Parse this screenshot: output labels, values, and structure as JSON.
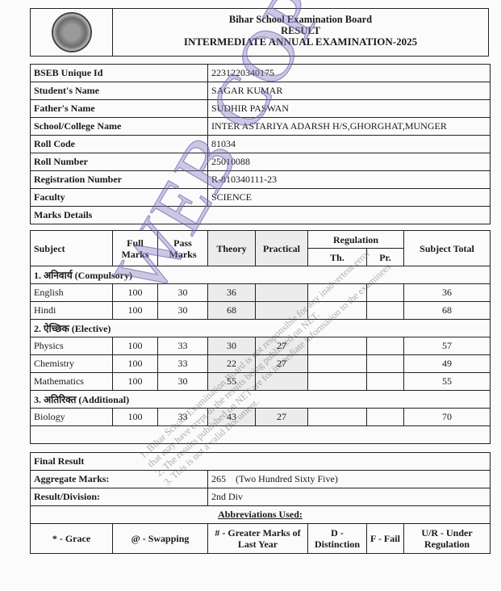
{
  "header": {
    "board": "Bihar School Examination Board",
    "subtitle": "RESULT",
    "exam": "INTERMEDIATE ANNUAL EXAMINATION-2025",
    "logo": "bseb-seal"
  },
  "info": [
    {
      "label": "BSEB Unique Id",
      "value": "2231220340175"
    },
    {
      "label": "Student's Name",
      "value": "SAGAR KUMAR"
    },
    {
      "label": "Father's Name",
      "value": "SUDHIR PASWAN"
    },
    {
      "label": "School/College Name",
      "value": "INTER ASTARIYA ADARSH H/S,GHORGHAT,MUNGER"
    },
    {
      "label": "Roll Code",
      "value": "81034"
    },
    {
      "label": "Roll Number",
      "value": "25010088"
    },
    {
      "label": "Registration Number",
      "value": "R-810340111-23"
    },
    {
      "label": "Faculty",
      "value": "SCIENCE"
    }
  ],
  "marks_details_label": "Marks Details",
  "columns": {
    "subject": "Subject",
    "full": "Full Marks",
    "pass": "Pass Marks",
    "theory": "Theory",
    "practical": "Practical",
    "regulation": "Regulation",
    "reg_th": "Th.",
    "reg_pr": "Pr.",
    "total": "Subject Total"
  },
  "sections": [
    {
      "title": "1. अनिवार्य (Compulsory)",
      "rows": [
        {
          "subject": "English",
          "full": "100",
          "pass": "30",
          "theory": "36",
          "practical": "",
          "th": "",
          "pr": "",
          "total": "36"
        },
        {
          "subject": "Hindi",
          "full": "100",
          "pass": "30",
          "theory": "68",
          "practical": "",
          "th": "",
          "pr": "",
          "total": "68"
        }
      ]
    },
    {
      "title": "2. ऐच्छिक (Elective)",
      "rows": [
        {
          "subject": "Physics",
          "full": "100",
          "pass": "33",
          "theory": "30",
          "practical": "27",
          "th": "",
          "pr": "",
          "total": "57"
        },
        {
          "subject": "Chemistry",
          "full": "100",
          "pass": "33",
          "theory": "22",
          "practical": "27",
          "th": "",
          "pr": "",
          "total": "49"
        },
        {
          "subject": "Mathematics",
          "full": "100",
          "pass": "30",
          "theory": "55",
          "practical": "",
          "th": "",
          "pr": "",
          "total": "55"
        }
      ]
    },
    {
      "title": "3. अतिरिक्त (Additional)",
      "rows": [
        {
          "subject": "Biology",
          "full": "100",
          "pass": "33",
          "theory": "43",
          "practical": "27",
          "th": "",
          "pr": "",
          "total": "70"
        }
      ]
    }
  ],
  "final": {
    "title": "Final Result",
    "aggregate_label": "Aggregate Marks:",
    "aggregate_value": "265    (Two Hundred Sixty Five)",
    "division_label": "Result/Division:",
    "division_value": "2nd Div"
  },
  "abbrev": {
    "title": "Abbreviations Used:",
    "items": [
      "* - Grace",
      "@ - Swapping",
      "# - Greater Marks of Last Year",
      "D - Distinction",
      "F - Fail",
      "U/R - Under Regulation"
    ]
  },
  "watermark": {
    "text": "WEB COPY",
    "lines": [
      "1. Bihar School Examination Board is not responsible for any inadvertent error",
      "that may have crept in the results being published on NET.",
      "2. The results published on NET are for immediate information to the examinees.",
      "3. This is not a valid Document."
    ]
  }
}
